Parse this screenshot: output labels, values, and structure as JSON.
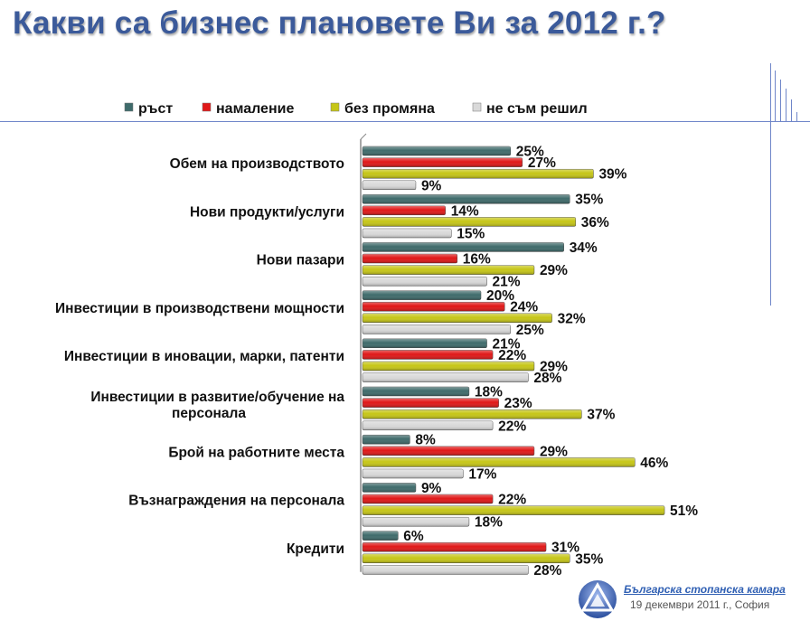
{
  "page": {
    "title": "Какви са бизнес плановете Ви за 2012 г.?",
    "footer_org": "Българска стопанска камара",
    "footer_date": "19 декември 2011 г., София"
  },
  "chart_data": {
    "type": "bar",
    "orientation": "horizontal",
    "title": "",
    "xlabel": "",
    "ylabel": "",
    "xlim": [
      0,
      55
    ],
    "grid": false,
    "legend_position": "top",
    "value_suffix": "%",
    "categories": [
      "Обем на производството",
      "Нови продукти/услуги",
      "Нови пазари",
      "Инвестиции в производствени мощности",
      "Инвестиции в иновации, марки, патенти",
      "Инвестиции в развитие/обучение на персонала",
      "Брой на работните места",
      "Възнаграждения на персонала",
      "Кредити"
    ],
    "category_lines": [
      [
        "Обем на производството"
      ],
      [
        "Нови продукти/услуги"
      ],
      [
        "Нови пазари"
      ],
      [
        "Инвестиции в производствени мощности"
      ],
      [
        "Инвестиции в иновации, марки, патенти"
      ],
      [
        "Инвестиции в развитие/обучение на",
        "персонала"
      ],
      [
        "Брой на работните места"
      ],
      [
        "Възнаграждения на персонала"
      ],
      [
        "Кредити"
      ]
    ],
    "series": [
      {
        "name": "ръст",
        "color": "#3f6b6b",
        "values": [
          25,
          35,
          34,
          20,
          21,
          18,
          8,
          9,
          6
        ]
      },
      {
        "name": "намаление",
        "color": "#e01818",
        "values": [
          27,
          14,
          16,
          24,
          22,
          23,
          29,
          22,
          31
        ]
      },
      {
        "name": "без промяна",
        "color": "#c6c617",
        "values": [
          39,
          36,
          29,
          32,
          29,
          37,
          46,
          51,
          35
        ]
      },
      {
        "name": "не съм решил",
        "color": "#d9d9d9",
        "values": [
          9,
          15,
          21,
          25,
          28,
          22,
          17,
          18,
          28
        ]
      }
    ]
  }
}
